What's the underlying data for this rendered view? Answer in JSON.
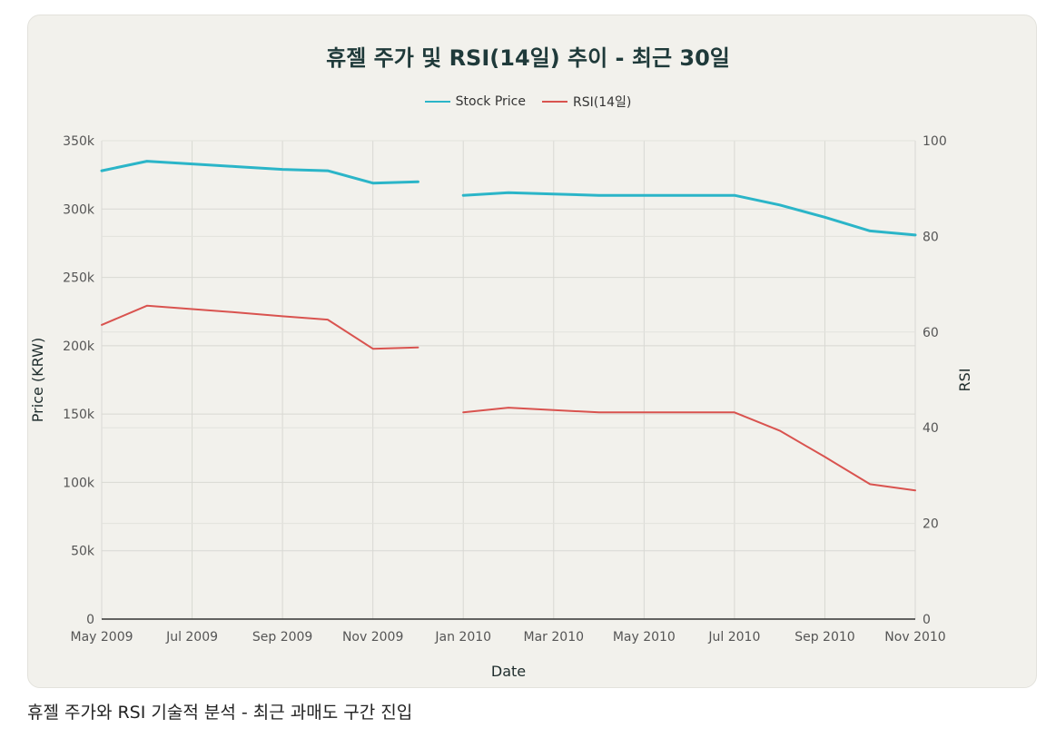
{
  "caption": "휴젤 주가와 RSI 기술적 분석 - 최근 과매도 구간 진입",
  "chart_data": {
    "type": "line",
    "title": "휴젤 주가 및 RSI(14일) 추이 - 최근 30일",
    "xlabel": "Date",
    "ylabel": "Price (KRW)",
    "y2label": "RSI",
    "xticks": [
      "May 2009",
      "Jul 2009",
      "Sep 2009",
      "Nov 2009",
      "Jan 2010",
      "Mar 2010",
      "May 2010",
      "Jul 2010",
      "Sep 2010",
      "Nov 2010"
    ],
    "yticks": [
      "0",
      "50k",
      "100k",
      "150k",
      "200k",
      "250k",
      "300k",
      "350k"
    ],
    "y2ticks": [
      "0",
      "20",
      "40",
      "60",
      "80",
      "100"
    ],
    "ylim": [
      0,
      350000
    ],
    "y2lim": [
      0,
      100
    ],
    "legend_position": "top-center",
    "colors": {
      "price": "#2bb5c8",
      "rsi": "#d9534f"
    },
    "series": [
      {
        "name": "Stock Price",
        "axis": "y",
        "x": [
          "2009-05",
          "2009-06",
          "2009-07",
          "2009-08",
          "2009-09",
          "2009-10",
          "2009-11",
          "2009-12",
          null,
          "2010-01",
          "2010-02",
          "2010-03",
          "2010-04",
          "2010-05",
          "2010-06",
          "2010-07",
          "2010-08",
          "2010-09",
          "2010-10",
          "2010-11"
        ],
        "values": [
          328000,
          335000,
          333000,
          331000,
          329000,
          328000,
          319000,
          320000,
          null,
          310000,
          312000,
          311000,
          310000,
          310000,
          310000,
          310000,
          303000,
          294000,
          284000,
          281000
        ]
      },
      {
        "name": "RSI(14일)",
        "axis": "y2",
        "x": [
          "2009-05",
          "2009-06",
          "2009-07",
          "2009-08",
          "2009-09",
          "2009-10",
          "2009-11",
          "2009-12",
          null,
          "2010-01",
          "2010-02",
          "2010-03",
          "2010-04",
          "2010-05",
          "2010-06",
          "2010-07",
          "2010-08",
          "2010-09",
          "2010-10",
          "2010-11"
        ],
        "values": [
          61.5,
          65.5,
          64.8,
          64.1,
          63.3,
          62.6,
          56.5,
          56.8,
          null,
          43.2,
          44.2,
          43.7,
          43.2,
          43.2,
          43.2,
          43.2,
          39.4,
          33.9,
          28.2,
          26.9
        ]
      }
    ]
  }
}
